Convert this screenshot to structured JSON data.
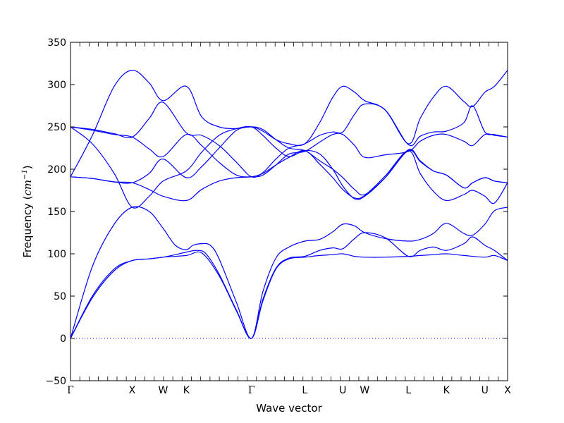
{
  "chart_data": {
    "type": "line",
    "xlabel": "Wave vector",
    "ylabel": "Frequency (",
    "ylabel_unit": "cm",
    "ylabel_unit_exp": "−1",
    "ylabel_close": ")",
    "ylim": [
      -50,
      350
    ],
    "yticks": [
      -50,
      0,
      50,
      100,
      150,
      200,
      250,
      300,
      350
    ],
    "ytick_labels": [
      "−50",
      "0",
      "50",
      "100",
      "150",
      "200",
      "250",
      "300",
      "350"
    ],
    "xlim": [
      0,
      100
    ],
    "xticks": [
      {
        "label": "Γ",
        "x": 0
      },
      {
        "label": "X",
        "x": 14.1
      },
      {
        "label": "W",
        "x": 21.2
      },
      {
        "label": "K",
        "x": 26.5
      },
      {
        "label": "Γ",
        "x": 41.4
      },
      {
        "label": "L",
        "x": 53.6
      },
      {
        "label": "U",
        "x": 62.3
      },
      {
        "label": "W",
        "x": 67.3
      },
      {
        "label": "L",
        "x": 77.3
      },
      {
        "label": "K",
        "x": 86.0
      },
      {
        "label": "U",
        "x": 94.8
      },
      {
        "label": "X",
        "x": 100
      }
    ],
    "grid": false,
    "line_color": "#0000ff",
    "zero_line_color": "#0000ff",
    "series": [
      {
        "x": [
          0,
          5,
          10,
          14.1,
          18,
          21.2,
          26.5,
          30,
          34,
          38,
          41.4,
          44,
          47,
          50,
          53.6,
          57,
          60,
          62.3,
          65,
          67.3,
          72,
          77.3,
          80,
          83,
          86,
          90,
          94.8,
          97,
          100
        ],
        "y": [
          0,
          48,
          80,
          92,
          94,
          96,
          98,
          101,
          74,
          32,
          0,
          44,
          82,
          94,
          96,
          98,
          99,
          100,
          97,
          96,
          96,
          97,
          98,
          99,
          100,
          98,
          96,
          98,
          92
        ]
      },
      {
        "x": [
          0,
          5,
          10,
          14.1,
          18,
          21.2,
          24,
          26.5,
          29,
          31,
          34,
          38,
          41.4,
          44,
          47,
          50,
          53.6,
          57,
          60,
          62.3,
          65,
          67.3,
          72,
          77.3,
          80,
          83,
          86,
          90,
          92,
          94.8,
          97,
          100
        ],
        "y": [
          0,
          50,
          82,
          92,
          94,
          96,
          99,
          102,
          104,
          100,
          76,
          33,
          0,
          46,
          83,
          95,
          97,
          104,
          107,
          106,
          118,
          125,
          119,
          97,
          104,
          108,
          104,
          112,
          120,
          110,
          104,
          92
        ]
      },
      {
        "x": [
          0,
          5,
          10,
          14.1,
          18,
          21.2,
          24,
          26.5,
          28,
          30,
          32,
          34,
          38,
          41.4,
          44,
          47,
          50,
          53.6,
          57,
          60,
          62.3,
          65,
          67.3,
          72,
          77.3,
          80,
          83,
          86,
          90,
          92,
          94.8,
          97,
          100
        ],
        "y": [
          0,
          85,
          135,
          155,
          150,
          130,
          110,
          105,
          110,
          112,
          110,
          94,
          42,
          0,
          55,
          95,
          108,
          115,
          117,
          126,
          135,
          133,
          125,
          118,
          115,
          117,
          124,
          136,
          124,
          122,
          135,
          151,
          155
        ]
      },
      {
        "x": [
          0,
          5,
          10,
          14.1,
          18,
          21.2,
          26.5,
          30,
          34,
          38,
          41.4,
          44,
          47,
          50,
          53.6,
          57,
          60,
          62.3,
          65,
          67.3,
          72,
          77.3,
          80,
          83,
          86,
          90,
          92,
          94.8,
          97,
          100
        ],
        "y": [
          191,
          189,
          185,
          184,
          176,
          168,
          163,
          176,
          186,
          190,
          191,
          195,
          205,
          214,
          222,
          206,
          190,
          176,
          166,
          169,
          192,
          222,
          195,
          174,
          163,
          170,
          175,
          168,
          160,
          184
        ]
      },
      {
        "x": [
          0,
          5,
          10,
          14.1,
          18,
          21.2,
          26.5,
          30,
          34,
          38,
          41.4,
          44,
          47,
          50,
          53.6,
          57,
          60,
          62.3,
          65,
          67.3,
          72,
          77.3,
          80,
          83,
          86,
          90,
          92,
          94.8,
          97,
          100
        ],
        "y": [
          191,
          189,
          185,
          184,
          195,
          212,
          190,
          203,
          225,
          246,
          250,
          247,
          235,
          225,
          222,
          210,
          200,
          190,
          176,
          170,
          190,
          222,
          209,
          198,
          193,
          178,
          184,
          190,
          186,
          184
        ]
      },
      {
        "x": [
          0,
          5,
          10,
          14.1,
          18,
          21.2,
          26.5,
          30,
          34,
          38,
          41.4,
          44,
          47,
          50,
          53.6,
          57,
          60,
          62.3,
          65,
          67.3,
          72,
          77.3,
          80,
          83,
          86,
          90,
          92,
          94.8,
          97,
          100
        ],
        "y": [
          250,
          230,
          195,
          155,
          168,
          186,
          198,
          220,
          240,
          248,
          250,
          240,
          225,
          215,
          222,
          218,
          200,
          180,
          165,
          168,
          190,
          223,
          210,
          198,
          193,
          178,
          184,
          190,
          186,
          184
        ]
      },
      {
        "x": [
          0,
          5,
          10,
          14.1,
          18,
          21.2,
          26.5,
          30,
          34,
          38,
          41.4,
          44,
          47,
          50,
          53.6,
          57,
          60,
          62.3,
          65,
          67.3,
          72,
          77.3,
          80,
          83,
          86,
          90,
          92,
          94.8,
          97,
          100
        ],
        "y": [
          250,
          246,
          241,
          238,
          224,
          215,
          241,
          228,
          208,
          193,
          191,
          193,
          205,
          218,
          221,
          232,
          241,
          241,
          228,
          214,
          217,
          221,
          233,
          240,
          241,
          233,
          228,
          241,
          240,
          238
        ]
      },
      {
        "x": [
          0,
          5,
          10,
          14.1,
          18,
          21.2,
          26.5,
          30,
          34,
          38,
          41.4,
          44,
          47,
          50,
          53.6,
          57,
          60,
          62.3,
          65,
          67.3,
          72,
          77.3,
          80,
          83,
          86,
          90,
          92,
          94.8,
          97,
          100
        ],
        "y": [
          250,
          247,
          242,
          238,
          260,
          279,
          243,
          240,
          228,
          208,
          191,
          196,
          212,
          225,
          230,
          240,
          244,
          244,
          265,
          277,
          270,
          229,
          239,
          244,
          245,
          255,
          275,
          244,
          241,
          238
        ]
      },
      {
        "x": [
          0,
          5,
          10,
          14.1,
          18,
          21.2,
          26.5,
          30,
          34,
          38,
          41.4,
          44,
          47,
          50,
          53.6,
          57,
          60,
          62.3,
          65,
          67.3,
          72,
          77.3,
          80,
          83,
          86,
          90,
          92,
          94.8,
          97,
          100
        ],
        "y": [
          191,
          240,
          298,
          317,
          302,
          281,
          298,
          262,
          250,
          248,
          250,
          245,
          235,
          230,
          230,
          255,
          285,
          298,
          291,
          281,
          270,
          230,
          260,
          285,
          298,
          280,
          274,
          291,
          298,
          317
        ]
      }
    ]
  }
}
